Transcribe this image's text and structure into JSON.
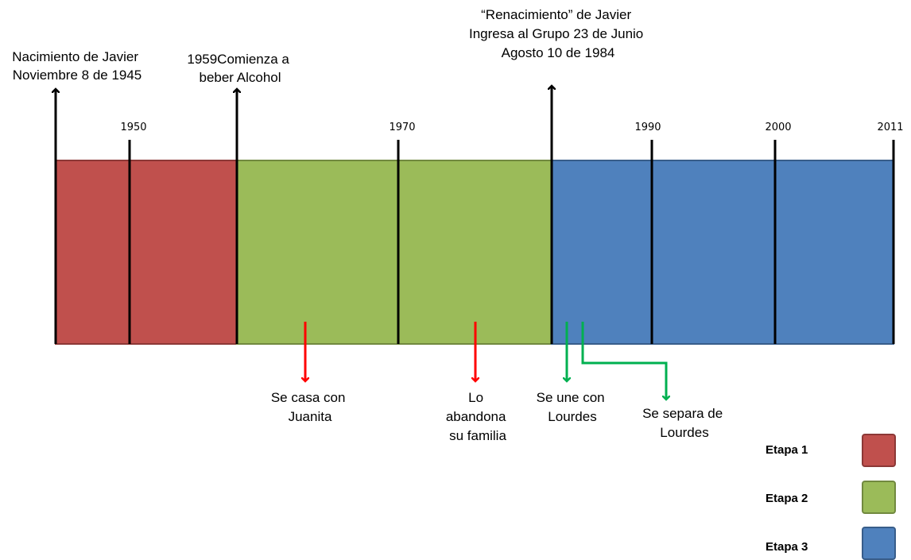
{
  "colors": {
    "stage1": "#C0504D",
    "stage1_border": "#8C3836",
    "stage2": "#9BBB59",
    "stage2_border": "#71893F",
    "stage3": "#4F81BD",
    "stage3_border": "#385D8A",
    "red_arrow": "#FF0000",
    "green_arrow": "#00B050",
    "axis": "#000000"
  },
  "timeline": {
    "year_ticks": [
      "1950",
      "1970",
      "1990",
      "2000",
      "2011"
    ],
    "top_events": [
      {
        "lines": [
          "Nacimiento de Javier",
          "Noviembre 8 de 1945"
        ]
      },
      {
        "lines": [
          "1959Comienza a",
          "beber Alcohol"
        ]
      },
      {
        "lines": [
          "“Renacimiento” de Javier",
          "Ingresa al Grupo 23 de Junio",
          "Agosto 10 de 1984"
        ]
      }
    ],
    "bottom_events": [
      {
        "lines": [
          "Se casa con",
          "Juanita"
        ],
        "arrow": "red"
      },
      {
        "lines": [
          "Lo",
          "abandona",
          "su familia"
        ],
        "arrow": "red"
      },
      {
        "lines": [
          "Se une con",
          "Lourdes"
        ],
        "arrow": "green"
      },
      {
        "lines": [
          "Se  separa de",
          "Lourdes"
        ],
        "arrow": "green"
      }
    ]
  },
  "legend": [
    {
      "label": "Etapa 1",
      "color": "#C0504D",
      "border": "#8C3836"
    },
    {
      "label": "Etapa 2",
      "color": "#9BBB59",
      "border": "#71893F"
    },
    {
      "label": "Etapa 3",
      "color": "#4F81BD",
      "border": "#385D8A"
    }
  ]
}
